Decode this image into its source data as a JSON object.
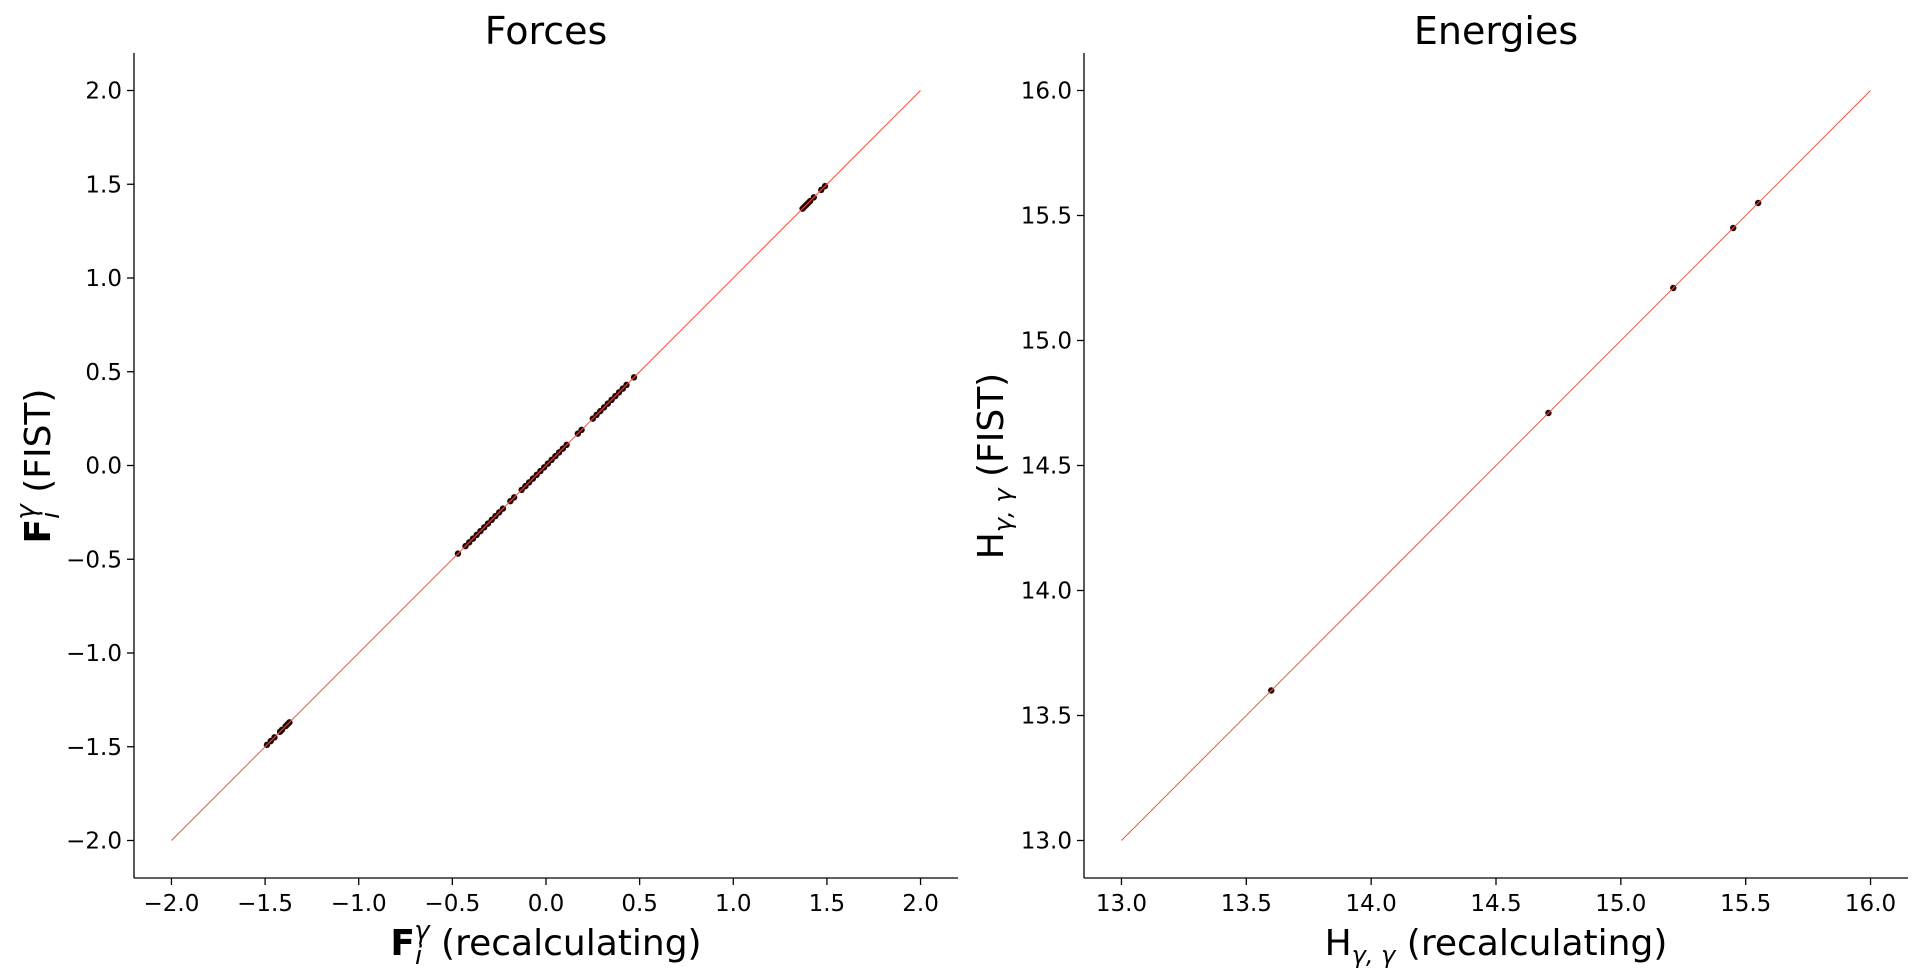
{
  "chart_data": [
    {
      "type": "scatter",
      "title": "Forces",
      "xlabel": {
        "main": "F",
        "sub": "i",
        "sup": "γ",
        "suffix": " (recalculating)"
      },
      "ylabel": {
        "main": "F",
        "sub": "i",
        "sup": "γ",
        "suffix": " (FIST)"
      },
      "xlim": [
        -2.2,
        2.2
      ],
      "ylim": [
        -2.2,
        2.2
      ],
      "xticks": [
        -2.0,
        -1.5,
        -1.0,
        -0.5,
        0.0,
        0.5,
        1.0,
        1.5,
        2.0
      ],
      "yticks": [
        -2.0,
        -1.5,
        -1.0,
        -0.5,
        0.0,
        0.5,
        1.0,
        1.5,
        2.0
      ],
      "tick_labels": [
        "−2.0",
        "−1.5",
        "−1.0",
        "−0.5",
        "0.0",
        "0.5",
        "1.0",
        "1.5",
        "2.0"
      ],
      "reference_line": {
        "from": [
          -2.0,
          -2.0
        ],
        "to": [
          2.0,
          2.0
        ],
        "color": "#f0533f"
      },
      "point_color": "#2a0404",
      "grid": false,
      "points": [
        [
          -1.49,
          -1.49
        ],
        [
          -1.47,
          -1.47
        ],
        [
          -1.45,
          -1.45
        ],
        [
          -1.42,
          -1.42
        ],
        [
          -1.41,
          -1.41
        ],
        [
          -1.39,
          -1.39
        ],
        [
          -1.38,
          -1.38
        ],
        [
          -1.37,
          -1.37
        ],
        [
          -0.47,
          -0.47
        ],
        [
          -0.43,
          -0.43
        ],
        [
          -0.41,
          -0.41
        ],
        [
          -0.39,
          -0.39
        ],
        [
          -0.37,
          -0.37
        ],
        [
          -0.35,
          -0.35
        ],
        [
          -0.33,
          -0.33
        ],
        [
          -0.31,
          -0.31
        ],
        [
          -0.29,
          -0.29
        ],
        [
          -0.27,
          -0.27
        ],
        [
          -0.25,
          -0.25
        ],
        [
          -0.23,
          -0.23
        ],
        [
          -0.19,
          -0.19
        ],
        [
          -0.17,
          -0.17
        ],
        [
          -0.13,
          -0.13
        ],
        [
          -0.11,
          -0.11
        ],
        [
          -0.09,
          -0.09
        ],
        [
          -0.07,
          -0.07
        ],
        [
          -0.05,
          -0.05
        ],
        [
          -0.03,
          -0.03
        ],
        [
          -0.01,
          -0.01
        ],
        [
          0.01,
          0.01
        ],
        [
          0.03,
          0.03
        ],
        [
          0.05,
          0.05
        ],
        [
          0.07,
          0.07
        ],
        [
          0.09,
          0.09
        ],
        [
          0.11,
          0.11
        ],
        [
          0.17,
          0.17
        ],
        [
          0.19,
          0.19
        ],
        [
          0.25,
          0.25
        ],
        [
          0.27,
          0.27
        ],
        [
          0.29,
          0.29
        ],
        [
          0.31,
          0.31
        ],
        [
          0.33,
          0.33
        ],
        [
          0.35,
          0.35
        ],
        [
          0.37,
          0.37
        ],
        [
          0.39,
          0.39
        ],
        [
          0.41,
          0.41
        ],
        [
          0.43,
          0.43
        ],
        [
          0.47,
          0.47
        ],
        [
          1.37,
          1.37
        ],
        [
          1.38,
          1.38
        ],
        [
          1.39,
          1.39
        ],
        [
          1.4,
          1.4
        ],
        [
          1.41,
          1.41
        ],
        [
          1.43,
          1.43
        ],
        [
          1.47,
          1.47
        ],
        [
          1.49,
          1.49
        ]
      ]
    },
    {
      "type": "scatter",
      "title": "Energies",
      "xlabel": {
        "main": "H",
        "sub": "γ, γ",
        "sup": "",
        "suffix": " (recalculating)"
      },
      "ylabel": {
        "main": "H",
        "sub": "γ, γ",
        "sup": "",
        "suffix": " (FIST)"
      },
      "xlim": [
        12.85,
        16.15
      ],
      "ylim": [
        12.85,
        16.15
      ],
      "xticks": [
        13.0,
        13.5,
        14.0,
        14.5,
        15.0,
        15.5,
        16.0
      ],
      "yticks": [
        13.0,
        13.5,
        14.0,
        14.5,
        15.0,
        15.5,
        16.0
      ],
      "tick_labels": [
        "13.0",
        "13.5",
        "14.0",
        "14.5",
        "15.0",
        "15.5",
        "16.0"
      ],
      "reference_line": {
        "from": [
          13.0,
          13.0
        ],
        "to": [
          16.0,
          16.0
        ],
        "color": "#f0533f"
      },
      "point_color": "#2a0404",
      "grid": false,
      "points": [
        [
          13.6,
          13.6
        ],
        [
          14.71,
          14.71
        ],
        [
          15.21,
          15.21
        ],
        [
          15.45,
          15.45
        ],
        [
          15.55,
          15.55
        ]
      ]
    }
  ]
}
